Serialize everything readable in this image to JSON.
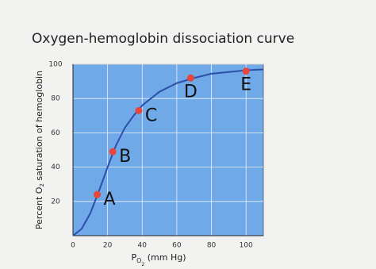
{
  "chart_data": {
    "type": "line",
    "title": "Oxygen-hemoglobin dissociation curve",
    "x_label": [
      "P",
      "O",
      "2",
      " (mm Hg)"
    ],
    "y_label": [
      "Percent O",
      "2",
      " saturation of hemoglobin"
    ],
    "xlim": [
      0,
      110
    ],
    "ylim": [
      0,
      100
    ],
    "xticks": [
      0,
      20,
      40,
      60,
      80,
      100
    ],
    "yticks": [
      20,
      40,
      60,
      80,
      100
    ],
    "grid": true,
    "background": "#6fa9e8",
    "curve": {
      "color": "#2c4fa8",
      "x": [
        0,
        5,
        10,
        15,
        20,
        25,
        30,
        35,
        40,
        50,
        60,
        70,
        80,
        90,
        100,
        110
      ],
      "values": [
        0,
        4,
        13,
        26,
        40,
        53,
        63,
        70,
        76,
        84,
        89,
        92,
        94.5,
        95.5,
        96.5,
        97
      ]
    },
    "points": {
      "color": "#e8453c",
      "labels": [
        "A",
        "B",
        "C",
        "D",
        "E"
      ],
      "x": [
        14,
        23,
        38,
        68,
        100
      ],
      "values": [
        24,
        49,
        73,
        92,
        96
      ]
    }
  }
}
